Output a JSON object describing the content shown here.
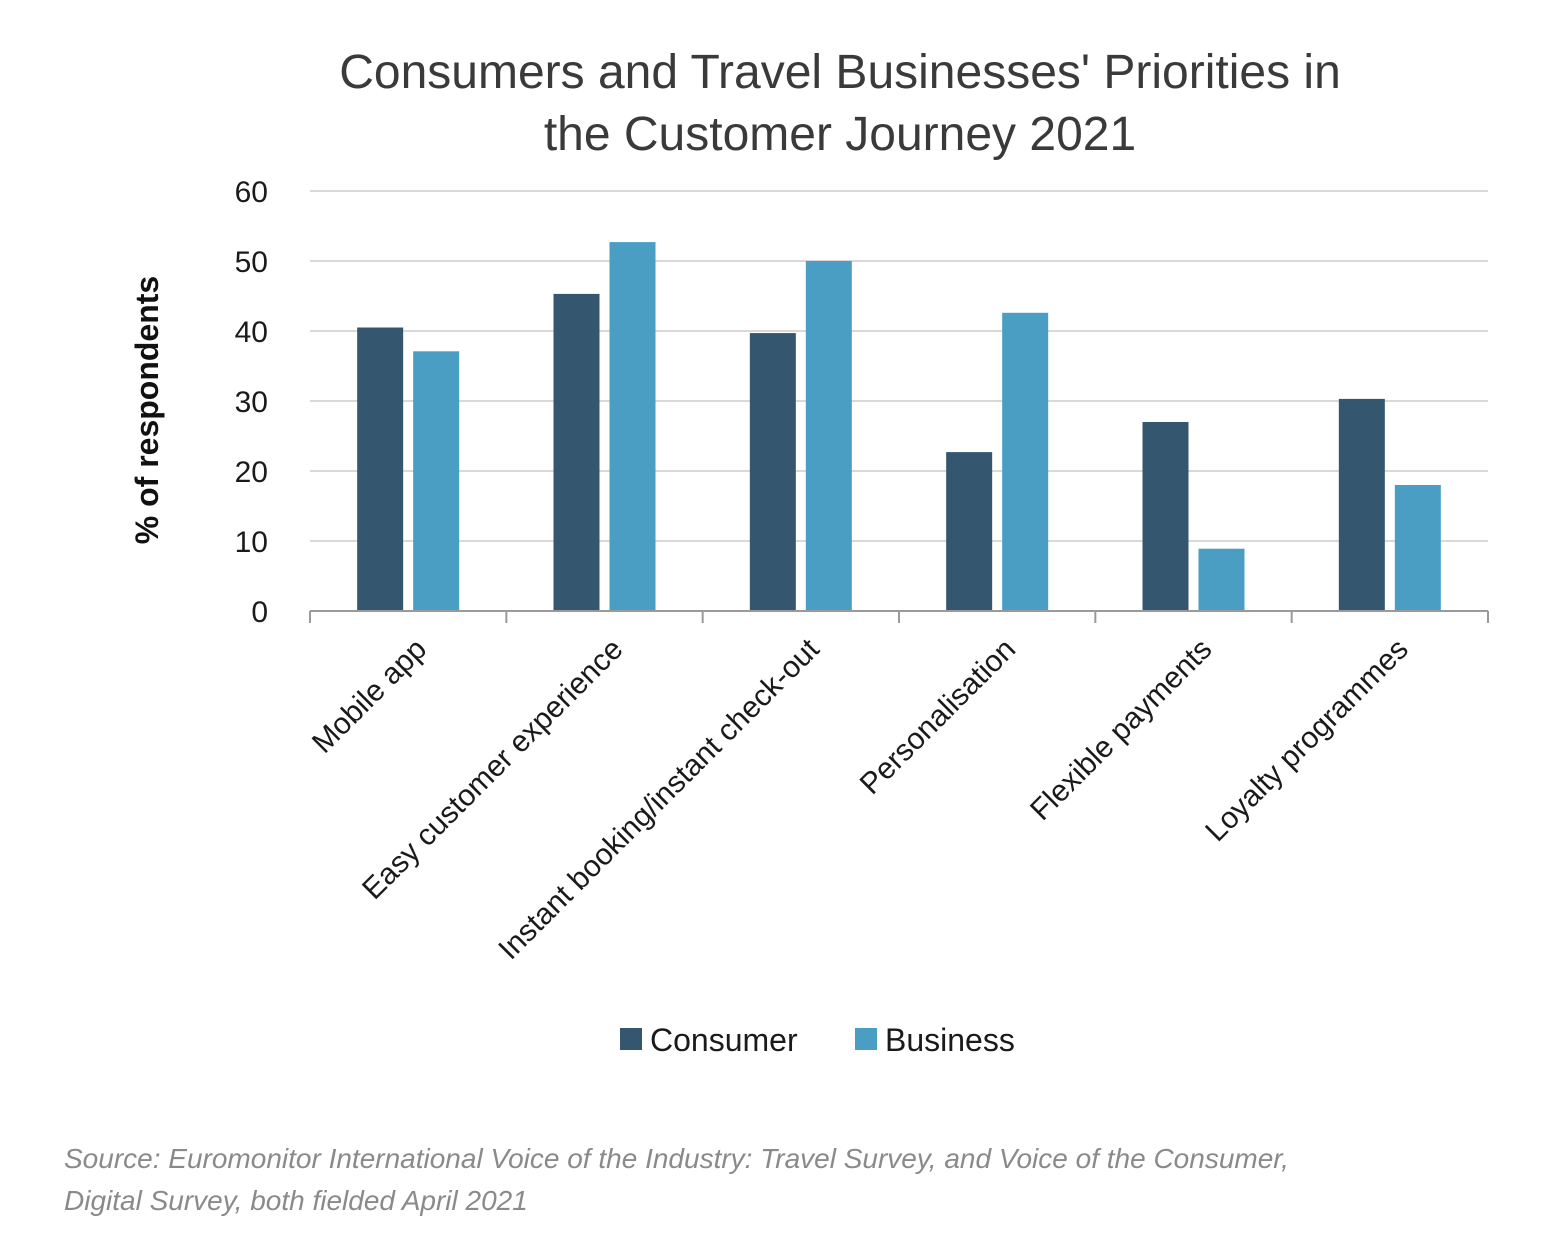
{
  "chart_data": {
    "type": "bar",
    "title_lines": [
      "Consumers and Travel Businesses' Priorities in",
      "the Customer Journey 2021"
    ],
    "ylabel": "% of respondents",
    "xlabel": "",
    "ylim": [
      0,
      60
    ],
    "yticks": [
      0,
      10,
      20,
      30,
      40,
      50,
      60
    ],
    "grid": true,
    "legend_position": "bottom",
    "categories": [
      "Mobile app",
      "Easy customer experience",
      "Instant booking/instant check-out",
      "Personalisation",
      "Flexible payments",
      "Loyalty programmes"
    ],
    "series": [
      {
        "name": "Consumer",
        "color": "#34566e",
        "values": [
          40.5,
          45.3,
          39.7,
          22.7,
          27.0,
          30.3
        ]
      },
      {
        "name": "Business",
        "color": "#4a9ec4",
        "values": [
          37.1,
          52.7,
          50.0,
          42.6,
          8.9,
          18.0
        ]
      }
    ]
  },
  "source_lines": [
    "Source: Euromonitor International Voice of the Industry: Travel Survey, and Voice of the Consumer,",
    "Digital Survey, both fielded April 2021"
  ]
}
